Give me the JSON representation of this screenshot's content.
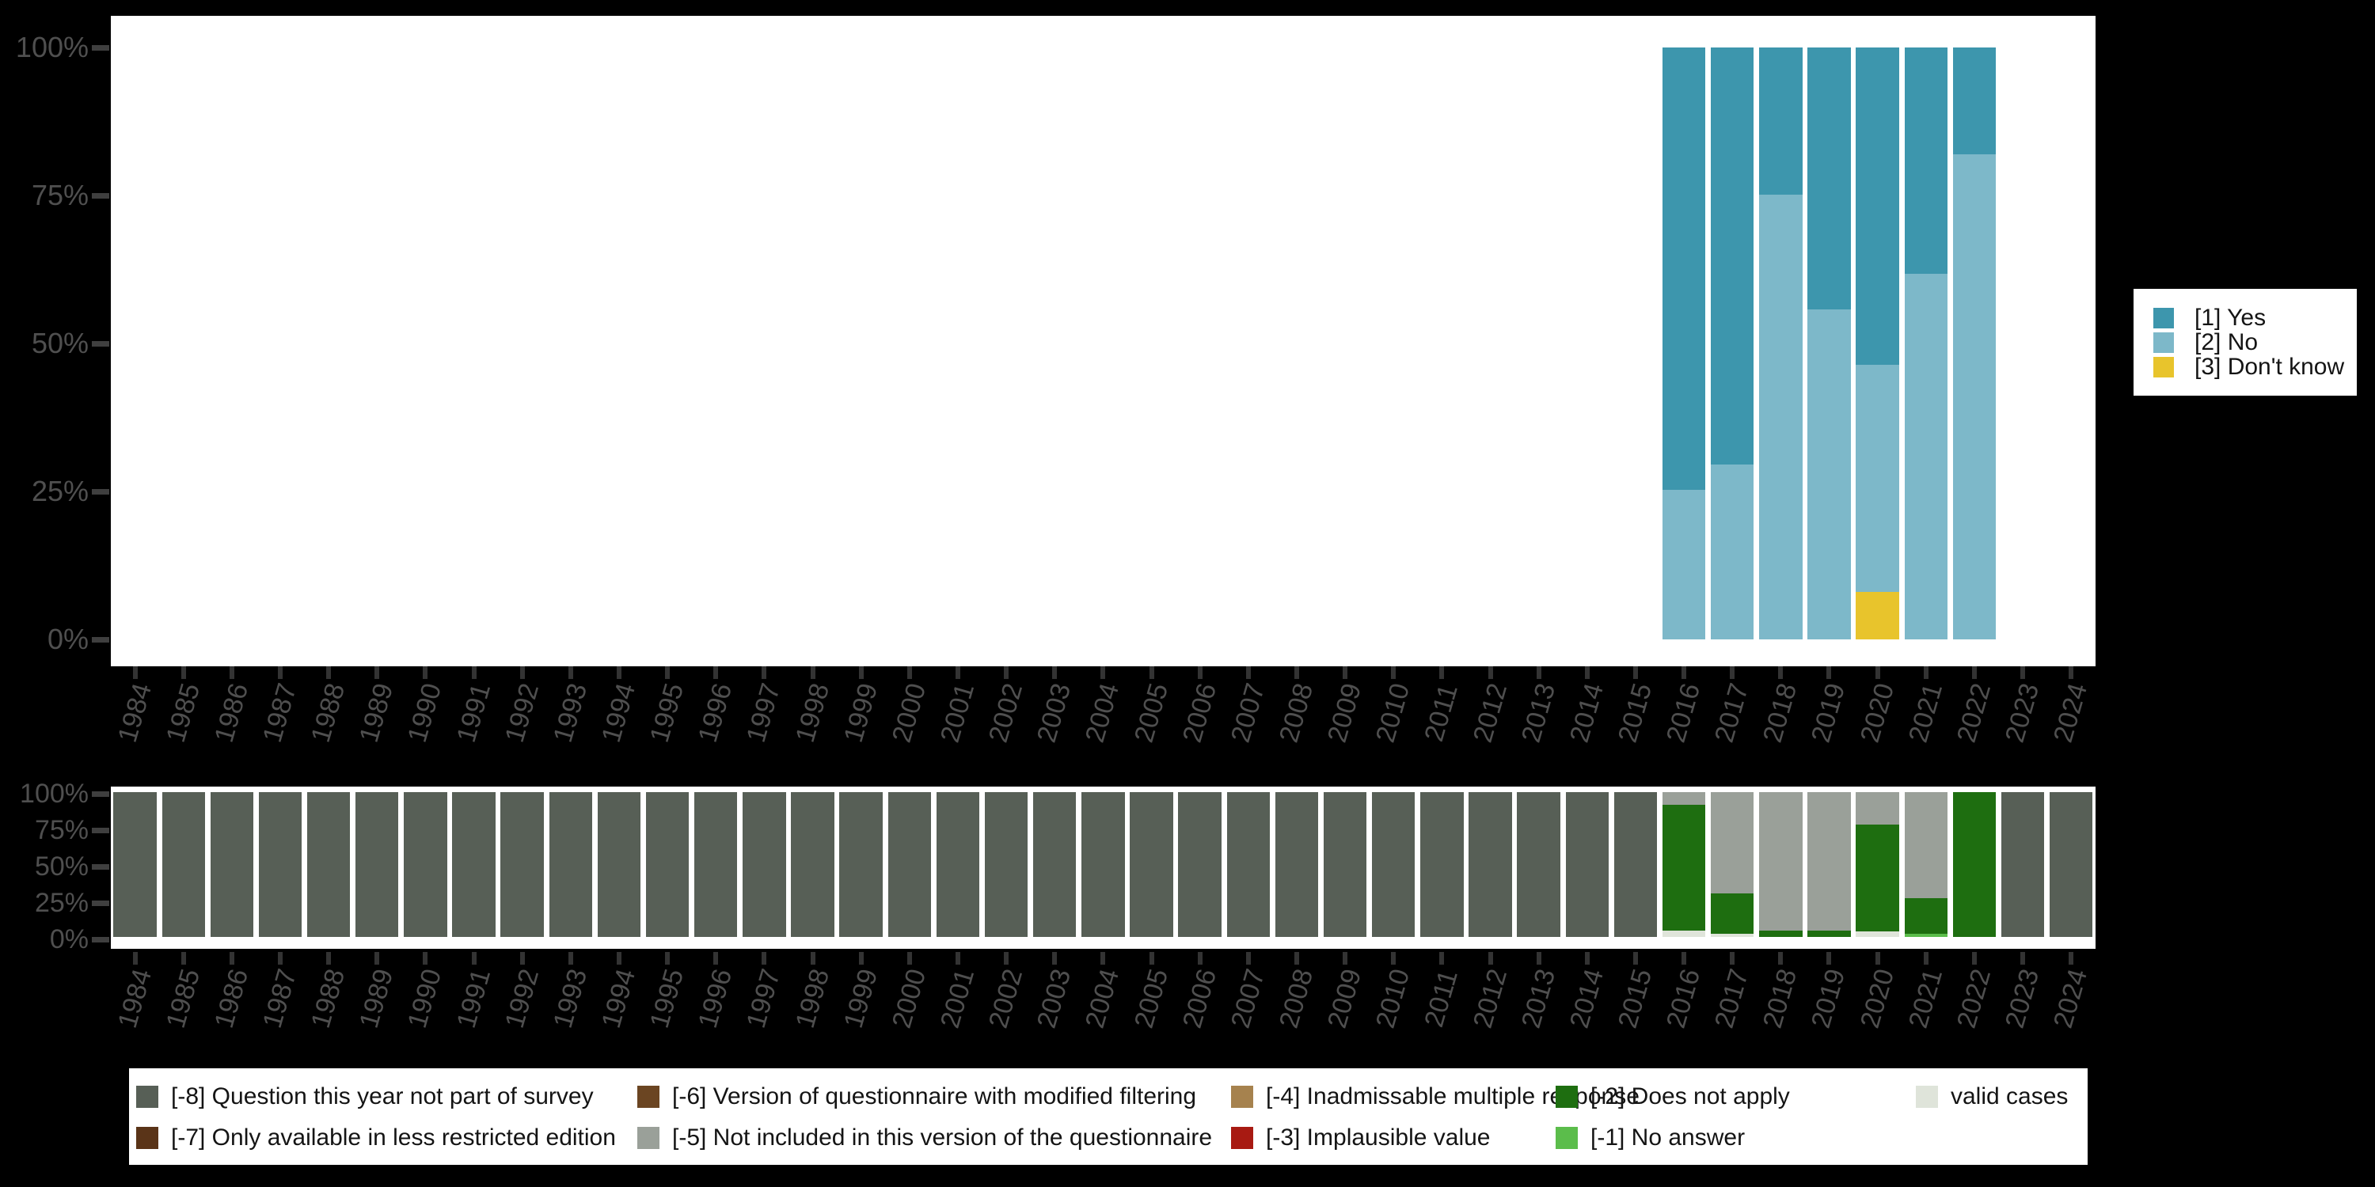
{
  "background_color": "#000000",
  "panel_color": "#ffffff",
  "axis_text_color": "#4f4f4f",
  "chart_data": [
    {
      "name": "answer-frequencies-by-year",
      "type": "bar",
      "stacked": true,
      "unit": "percent",
      "ylim": [
        0,
        100
      ],
      "grid": false,
      "legend_position": "right",
      "y_ticks": [
        "100%",
        "75%",
        "50%",
        "25%",
        "0%"
      ],
      "x_categories": [
        "1984",
        "1985",
        "1986",
        "1987",
        "1988",
        "1989",
        "1990",
        "1991",
        "1992",
        "1993",
        "1994",
        "1995",
        "1996",
        "1997",
        "1998",
        "1999",
        "2000",
        "2001",
        "2002",
        "2003",
        "2004",
        "2005",
        "2006",
        "2007",
        "2008",
        "2009",
        "2010",
        "2011",
        "2012",
        "2013",
        "2014",
        "2015",
        "2016",
        "2017",
        "2018",
        "2019",
        "2020",
        "2021",
        "2022",
        "2023",
        "2024"
      ],
      "legend": [
        {
          "key": "yes",
          "label": "[1] Yes",
          "color": "#3d96ad"
        },
        {
          "key": "no",
          "label": "[2] No",
          "color": "#7db8c9"
        },
        {
          "key": "dk",
          "label": "[3] Don't know",
          "color": "#e8c42c"
        }
      ],
      "bars": {
        "2016": [
          {
            "k": "no",
            "v": 25.3
          },
          {
            "k": "yes",
            "v": 74.7
          }
        ],
        "2017": [
          {
            "k": "no",
            "v": 29.5
          },
          {
            "k": "yes",
            "v": 70.5
          }
        ],
        "2018": [
          {
            "k": "no",
            "v": 75.1
          },
          {
            "k": "yes",
            "v": 24.9
          }
        ],
        "2019": [
          {
            "k": "no",
            "v": 55.7
          },
          {
            "k": "yes",
            "v": 44.3
          }
        ],
        "2020": [
          {
            "k": "dk",
            "v": 8.0
          },
          {
            "k": "no",
            "v": 38.4
          },
          {
            "k": "yes",
            "v": 53.6
          }
        ],
        "2021": [
          {
            "k": "no",
            "v": 61.7
          },
          {
            "k": "yes",
            "v": 38.3
          }
        ],
        "2022": [
          {
            "k": "no",
            "v": 81.9
          },
          {
            "k": "yes",
            "v": 18.1
          }
        ]
      }
    },
    {
      "name": "missing-values-by-year",
      "type": "bar",
      "stacked": true,
      "unit": "percent",
      "ylim": [
        0,
        100
      ],
      "grid": false,
      "legend_position": "bottom",
      "y_ticks": [
        "100%",
        "75%",
        "50%",
        "25%",
        "0%"
      ],
      "x_categories": [
        "1984",
        "1985",
        "1986",
        "1987",
        "1988",
        "1989",
        "1990",
        "1991",
        "1992",
        "1993",
        "1994",
        "1995",
        "1996",
        "1997",
        "1998",
        "1999",
        "2000",
        "2001",
        "2002",
        "2003",
        "2004",
        "2005",
        "2006",
        "2007",
        "2008",
        "2009",
        "2010",
        "2011",
        "2012",
        "2013",
        "2014",
        "2015",
        "2016",
        "2017",
        "2018",
        "2019",
        "2020",
        "2021",
        "2022",
        "2023",
        "2024"
      ],
      "legend": [
        {
          "key": "m8",
          "label": "[-8] Question this year not part of survey",
          "color": "#575f56"
        },
        {
          "key": "m7",
          "label": "[-7] Only available in less restricted edition",
          "color": "#5a3418"
        },
        {
          "key": "m6",
          "label": "[-6] Version of questionnaire with modified filtering",
          "color": "#6b4522"
        },
        {
          "key": "m5",
          "label": "[-5] Not included in this version of the questionnaire",
          "color": "#9aa099"
        },
        {
          "key": "m4",
          "label": "[-4] Inadmissable multiple response",
          "color": "#a6824e"
        },
        {
          "key": "m3",
          "label": "[-3] Implausible value",
          "color": "#a81a12"
        },
        {
          "key": "m2",
          "label": "[-2] Does not apply",
          "color": "#1e6e10"
        },
        {
          "key": "m1",
          "label": "[-1] No answer",
          "color": "#5bbd4b"
        },
        {
          "key": "valid",
          "label": "valid cases",
          "color": "#dfe4da"
        }
      ],
      "bars": {
        "1984": [
          {
            "k": "m8",
            "v": 100
          }
        ],
        "1985": [
          {
            "k": "m8",
            "v": 100
          }
        ],
        "1986": [
          {
            "k": "m8",
            "v": 100
          }
        ],
        "1987": [
          {
            "k": "m8",
            "v": 100
          }
        ],
        "1988": [
          {
            "k": "m8",
            "v": 100
          }
        ],
        "1989": [
          {
            "k": "m8",
            "v": 100
          }
        ],
        "1990": [
          {
            "k": "m8",
            "v": 100
          }
        ],
        "1991": [
          {
            "k": "m8",
            "v": 100
          }
        ],
        "1992": [
          {
            "k": "m8",
            "v": 100
          }
        ],
        "1993": [
          {
            "k": "m8",
            "v": 100
          }
        ],
        "1994": [
          {
            "k": "m8",
            "v": 100
          }
        ],
        "1995": [
          {
            "k": "m8",
            "v": 100
          }
        ],
        "1996": [
          {
            "k": "m8",
            "v": 100
          }
        ],
        "1997": [
          {
            "k": "m8",
            "v": 100
          }
        ],
        "1998": [
          {
            "k": "m8",
            "v": 100
          }
        ],
        "1999": [
          {
            "k": "m8",
            "v": 100
          }
        ],
        "2000": [
          {
            "k": "m8",
            "v": 100
          }
        ],
        "2001": [
          {
            "k": "m8",
            "v": 100
          }
        ],
        "2002": [
          {
            "k": "m8",
            "v": 100
          }
        ],
        "2003": [
          {
            "k": "m8",
            "v": 100
          }
        ],
        "2004": [
          {
            "k": "m8",
            "v": 100
          }
        ],
        "2005": [
          {
            "k": "m8",
            "v": 100
          }
        ],
        "2006": [
          {
            "k": "m8",
            "v": 100
          }
        ],
        "2007": [
          {
            "k": "m8",
            "v": 100
          }
        ],
        "2008": [
          {
            "k": "m8",
            "v": 100
          }
        ],
        "2009": [
          {
            "k": "m8",
            "v": 100
          }
        ],
        "2010": [
          {
            "k": "m8",
            "v": 100
          }
        ],
        "2011": [
          {
            "k": "m8",
            "v": 100
          }
        ],
        "2012": [
          {
            "k": "m8",
            "v": 100
          }
        ],
        "2013": [
          {
            "k": "m8",
            "v": 100
          }
        ],
        "2014": [
          {
            "k": "m8",
            "v": 100
          }
        ],
        "2015": [
          {
            "k": "m8",
            "v": 100
          }
        ],
        "2016": [
          {
            "k": "valid",
            "v": 4.2
          },
          {
            "k": "m2",
            "v": 87.3
          },
          {
            "k": "m5",
            "v": 8.5
          }
        ],
        "2017": [
          {
            "k": "valid",
            "v": 2.1
          },
          {
            "k": "m2",
            "v": 28.1
          },
          {
            "k": "m5",
            "v": 69.8
          }
        ],
        "2018": [
          {
            "k": "m2",
            "v": 4.2
          },
          {
            "k": "m5",
            "v": 95.8
          }
        ],
        "2019": [
          {
            "k": "m2",
            "v": 4.2
          },
          {
            "k": "m5",
            "v": 95.8
          }
        ],
        "2020": [
          {
            "k": "valid",
            "v": 3.7
          },
          {
            "k": "m2",
            "v": 74.1
          },
          {
            "k": "m5",
            "v": 22.2
          }
        ],
        "2021": [
          {
            "k": "m1",
            "v": 2.1
          },
          {
            "k": "m2",
            "v": 24.9
          },
          {
            "k": "m5",
            "v": 73.0
          }
        ],
        "2022": [
          {
            "k": "m2",
            "v": 100
          }
        ],
        "2023": [
          {
            "k": "m8",
            "v": 100
          }
        ],
        "2024": [
          {
            "k": "m8",
            "v": 100
          }
        ]
      }
    }
  ]
}
